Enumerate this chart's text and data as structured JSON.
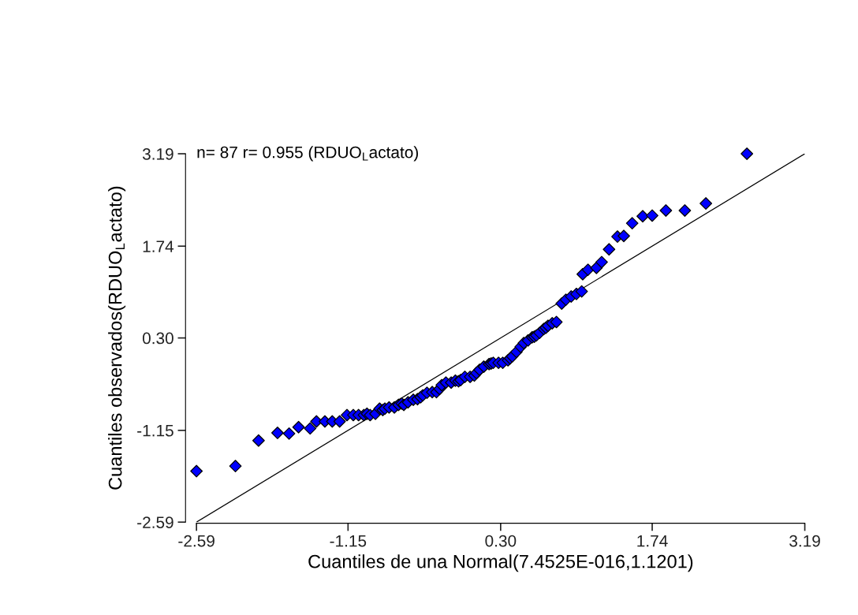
{
  "chart_data": {
    "type": "scatter",
    "xlabel": "Cuantiles de una Normal(7.4525E-016,1.1201)",
    "ylabel": "Cuantiles observados(RDUO$_{L}$actato)",
    "annotations": [
      "n= 87 r= 0.955 (RDUO$_{L}$actato)"
    ],
    "xlim": [
      -2.59,
      3.19
    ],
    "ylim": [
      -2.59,
      3.19
    ],
    "xticks": [
      {
        "value": -2.59,
        "label": "-2.59"
      },
      {
        "value": -1.15,
        "label": "-1.15"
      },
      {
        "value": 0.3,
        "label": "0.30"
      },
      {
        "value": 1.74,
        "label": "1.74"
      },
      {
        "value": 3.19,
        "label": "3.19"
      }
    ],
    "yticks": [
      {
        "value": -2.59,
        "label": "-2.59"
      },
      {
        "value": -1.15,
        "label": "-1.15"
      },
      {
        "value": 0.3,
        "label": "0.30"
      },
      {
        "value": 1.74,
        "label": "1.74"
      },
      {
        "value": 3.19,
        "label": "3.19"
      }
    ],
    "grid": false,
    "legend": false,
    "marker": "diamond",
    "series": [
      {
        "color": "#0000ff",
        "x": [
          -2.59,
          -2.22,
          -2.0,
          -1.82,
          -1.71,
          -1.62,
          -1.51,
          -1.45,
          -1.37,
          -1.3,
          -1.23,
          -1.16,
          -1.1,
          -1.05,
          -1.0,
          -0.97,
          -0.94,
          -0.89,
          -0.85,
          -0.82,
          -0.8,
          -0.76,
          -0.71,
          -0.67,
          -0.64,
          -0.62,
          -0.58,
          -0.53,
          -0.49,
          -0.46,
          -0.44,
          -0.4,
          -0.35,
          -0.31,
          -0.28,
          -0.26,
          -0.22,
          -0.17,
          -0.13,
          -0.1,
          -0.08,
          -0.04,
          0.01,
          0.05,
          0.07,
          0.1,
          0.14,
          0.19,
          0.21,
          0.23,
          0.28,
          0.32,
          0.37,
          0.39,
          0.41,
          0.45,
          0.49,
          0.52,
          0.56,
          0.6,
          0.62,
          0.64,
          0.67,
          0.71,
          0.73,
          0.75,
          0.79,
          0.83,
          0.88,
          0.92,
          0.97,
          1.02,
          1.07,
          1.08,
          1.13,
          1.21,
          1.26,
          1.33,
          1.41,
          1.47,
          1.55,
          1.65,
          1.74,
          1.87,
          2.05,
          2.25,
          2.64
        ],
        "values": [
          -1.79,
          -1.71,
          -1.31,
          -1.19,
          -1.2,
          -1.1,
          -1.12,
          -1.01,
          -1.01,
          -1.01,
          -1.01,
          -0.91,
          -0.91,
          -0.91,
          -0.91,
          -0.89,
          -0.91,
          -0.89,
          -0.81,
          -0.83,
          -0.81,
          -0.79,
          -0.79,
          -0.75,
          -0.73,
          -0.75,
          -0.71,
          -0.67,
          -0.66,
          -0.63,
          -0.6,
          -0.56,
          -0.55,
          -0.55,
          -0.5,
          -0.44,
          -0.4,
          -0.4,
          -0.37,
          -0.38,
          -0.36,
          -0.31,
          -0.31,
          -0.29,
          -0.25,
          -0.2,
          -0.15,
          -0.11,
          -0.1,
          -0.09,
          -0.09,
          -0.09,
          -0.05,
          -0.02,
          0.01,
          0.08,
          0.16,
          0.22,
          0.26,
          0.31,
          0.32,
          0.34,
          0.38,
          0.44,
          0.46,
          0.49,
          0.53,
          0.55,
          0.84,
          0.9,
          0.95,
          0.99,
          1.03,
          1.3,
          1.37,
          1.4,
          1.49,
          1.69,
          1.89,
          1.9,
          2.1,
          2.21,
          2.22,
          2.3,
          2.3,
          2.41,
          3.19
        ]
      },
      {
        "type": "line",
        "color": "#000000",
        "marker": "none",
        "x": [
          -2.59,
          3.19
        ],
        "values": [
          -2.59,
          3.19
        ]
      }
    ]
  }
}
